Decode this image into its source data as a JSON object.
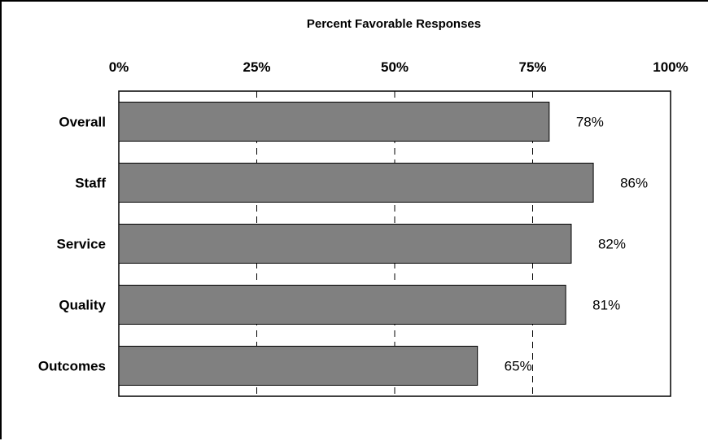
{
  "chart_data": {
    "type": "bar",
    "orientation": "horizontal",
    "title": "Percent Favorable Responses",
    "categories": [
      "Overall",
      "Staff",
      "Service",
      "Quality",
      "Outcomes"
    ],
    "values": [
      78,
      86,
      82,
      81,
      65
    ],
    "value_labels": [
      "78%",
      "86%",
      "82%",
      "81%",
      "65%"
    ],
    "xlim": [
      0,
      100
    ],
    "x_ticks": [
      0,
      25,
      50,
      75,
      100
    ],
    "x_tick_labels": [
      "0%",
      "25%",
      "50%",
      "75%",
      "100%"
    ],
    "x_axis_position": "top",
    "gridlines": "vertical dashed",
    "legend": "none",
    "colors": {
      "bar": "#808080",
      "bar_edge": "#000000",
      "grid": "#000000"
    }
  }
}
